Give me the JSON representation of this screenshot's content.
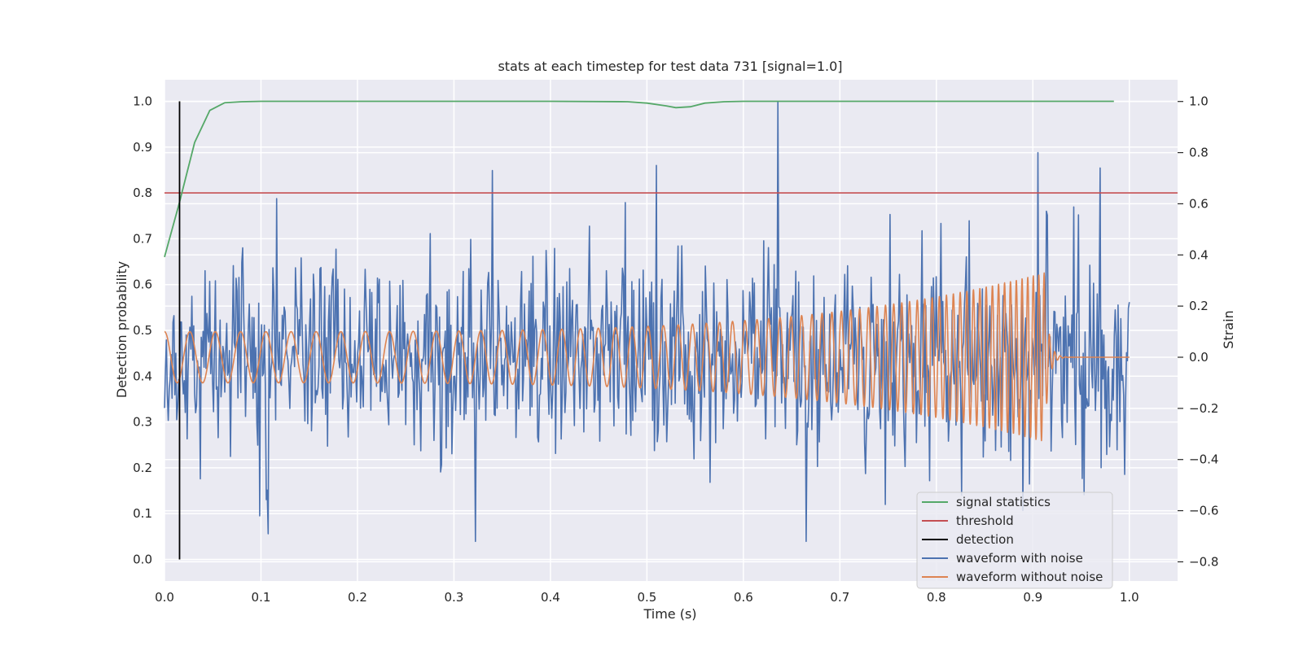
{
  "chart_data": {
    "type": "line",
    "title": "stats at each timestep for test data 731 [signal=1.0]",
    "xlabel": "Time (s)",
    "ylabel": "Detection probability",
    "y2label": "Strain",
    "xlim": [
      0.0,
      1.05
    ],
    "ylim": [
      -0.047,
      1.047
    ],
    "y2lim": [
      -0.875,
      1.085
    ],
    "x_ticks": [
      "0.0",
      "0.1",
      "0.2",
      "0.3",
      "0.4",
      "0.5",
      "0.6",
      "0.7",
      "0.8",
      "0.9",
      "1.0"
    ],
    "y_ticks": [
      "0.0",
      "0.1",
      "0.2",
      "0.3",
      "0.4",
      "0.5",
      "0.6",
      "0.7",
      "0.8",
      "0.9",
      "1.0"
    ],
    "y2_ticks": [
      "−0.8",
      "−0.6",
      "−0.4",
      "−0.2",
      "0.0",
      "0.2",
      "0.4",
      "0.6",
      "0.8",
      "1.0"
    ],
    "grid": true,
    "legend_position": "lower-right",
    "background_color": "#eaeaf2",
    "signal_statistics": {
      "name": "signal statistics",
      "color": "#55a868",
      "x": [
        0.0,
        0.0156,
        0.0312,
        0.0469,
        0.0625,
        0.08,
        0.1,
        0.2,
        0.3,
        0.4,
        0.48,
        0.5,
        0.52,
        0.53,
        0.545,
        0.56,
        0.58,
        0.6,
        0.7,
        0.8,
        0.9,
        0.984
      ],
      "y": [
        0.66,
        0.78,
        0.91,
        0.98,
        0.997,
        0.999,
        1.0,
        1.0,
        1.0,
        1.0,
        0.999,
        0.996,
        0.99,
        0.986,
        0.988,
        0.996,
        0.999,
        1.0,
        1.0,
        1.0,
        1.0,
        1.0
      ]
    },
    "threshold": {
      "name": "threshold",
      "color": "#c44e52",
      "value": 0.8
    },
    "detection": {
      "name": "detection",
      "color": "#000000",
      "x": 0.0156,
      "y": [
        0.0,
        1.0
      ]
    },
    "waveform_with_noise": {
      "name": "waveform with noise",
      "color": "#4c72b0",
      "duration": 1.0,
      "noise_seed": 731,
      "noise_std": 0.2,
      "peaks": [
        {
          "x": 0.636,
          "y": 1.0
        },
        {
          "x": 0.905,
          "y": 0.8
        },
        {
          "x": 0.51,
          "y": 0.75
        },
        {
          "x": 0.34,
          "y": 0.73
        },
        {
          "x": 0.322,
          "y": -0.72
        },
        {
          "x": 0.665,
          "y": -0.72
        },
        {
          "x": 0.107,
          "y": -0.69
        },
        {
          "x": 0.97,
          "y": 0.74
        }
      ]
    },
    "waveform_without_noise": {
      "name": "waveform without noise",
      "color": "#dd8452",
      "duration": 1.0,
      "merger_time": 0.912,
      "start_frequency": 38,
      "end_frequency": 180,
      "start_amplitude": 0.1,
      "peak_amplitude": 0.33
    }
  }
}
